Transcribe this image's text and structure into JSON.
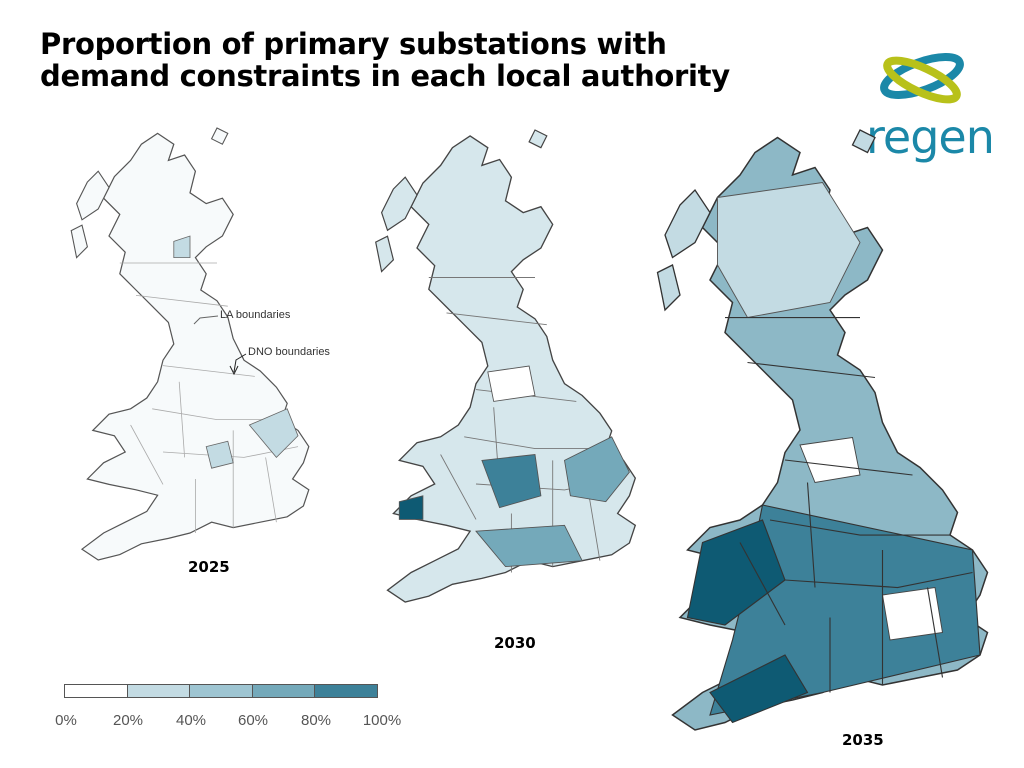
{
  "title": {
    "line1": "Proportion of primary substations with",
    "line2": "demand constraints in each local authority"
  },
  "logo": {
    "text": "regen",
    "icon": "regen-swirl-logo"
  },
  "colors": {
    "bin0": "#ffffff",
    "bin1": "#c3dbe3",
    "bin2": "#9ec5d2",
    "bin3": "#74a9ba",
    "bin4": "#3d8199",
    "bin5": "#0e5a73",
    "border": "#333333"
  },
  "maps": [
    {
      "year": "2025",
      "fill": "#f7fafb"
    },
    {
      "year": "2030",
      "fill": "#d6e7ec"
    },
    {
      "year": "2035",
      "fill": "#8db8c6"
    }
  ],
  "annotations": {
    "la": "LA boundaries",
    "dno": "DNO boundaries"
  },
  "legend": {
    "ticks": [
      "0%",
      "20%",
      "40%",
      "60%",
      "80%",
      "100%"
    ],
    "segments": [
      "#ffffff",
      "#c3dbe3",
      "#9ec5d2",
      "#74a9ba",
      "#3d8199"
    ]
  }
}
